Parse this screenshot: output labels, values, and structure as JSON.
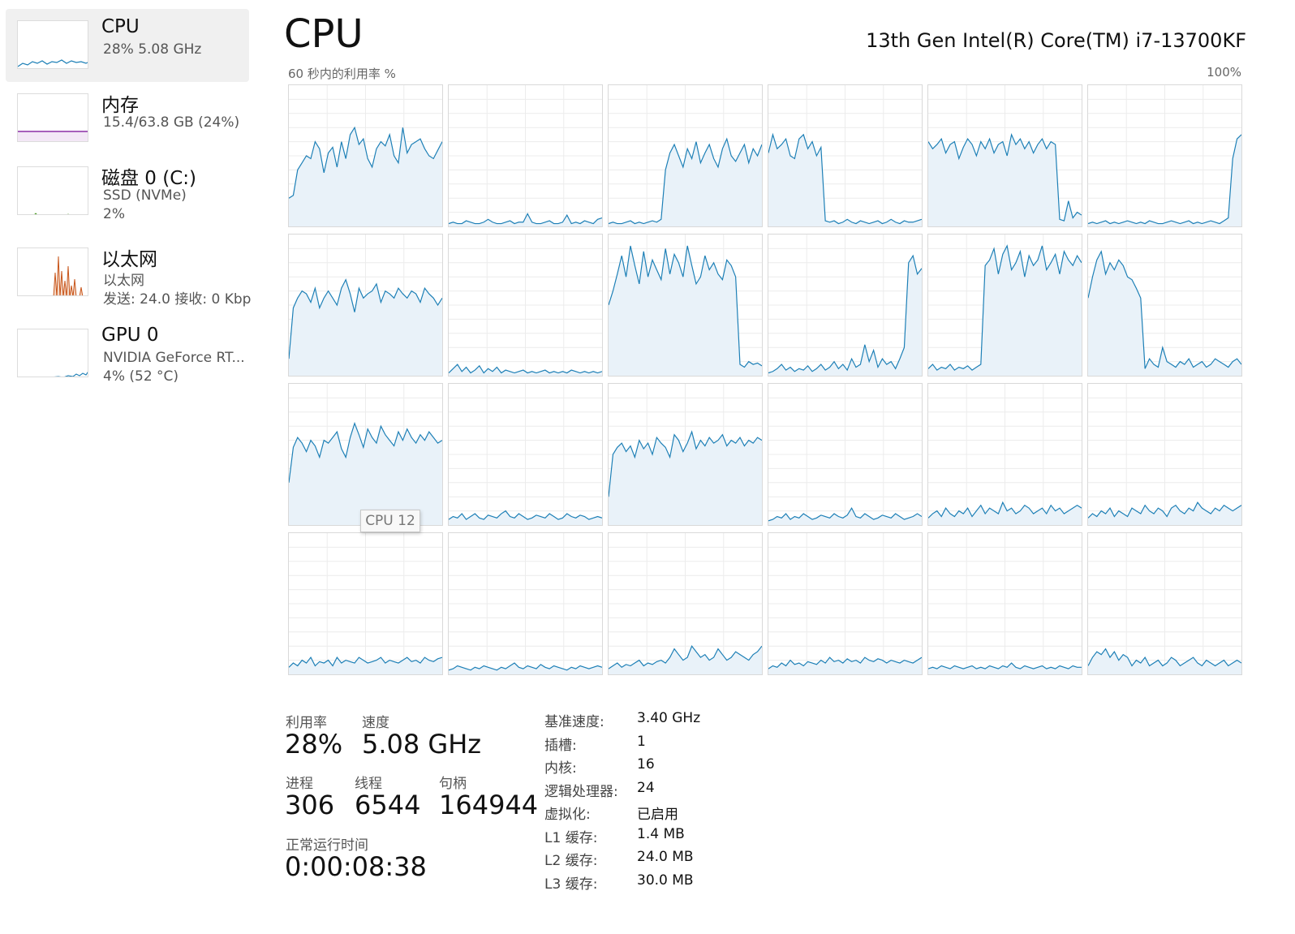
{
  "sidebar": {
    "items": [
      {
        "title": "CPU",
        "sub1": "28%  5.08 GHz",
        "sub2": "",
        "sub3": ""
      },
      {
        "title": "内存",
        "sub1": "15.4/63.8 GB (24%)",
        "sub2": "",
        "sub3": ""
      },
      {
        "title": "磁盘 0 (C:)",
        "sub1": "SSD (NVMe)",
        "sub2": "2%",
        "sub3": ""
      },
      {
        "title": "以太网",
        "sub1": "以太网",
        "sub2": "发送: 24.0  接收: 0 Kbp",
        "sub3": ""
      },
      {
        "title": "GPU 0",
        "sub1": "NVIDIA GeForce RT...",
        "sub2": "4% (52 °C)",
        "sub3": ""
      }
    ]
  },
  "header": {
    "title": "CPU",
    "model": "13th Gen Intel(R) Core(TM) i7-13700KF",
    "util_caption": "60 秒内的利用率 %",
    "util_max": "100%"
  },
  "tooltip": "CPU 12",
  "colors": {
    "line": "#1c7fb6",
    "fill": "#e9f2f9",
    "grid": "#ececec",
    "memory": "#8b2fa5",
    "ethernet": "#c8561b"
  },
  "chart_data": {
    "type": "line",
    "ylim": [
      0,
      100
    ],
    "series": [
      {
        "values": [
          20,
          22,
          40,
          45,
          50,
          48,
          60,
          55,
          38,
          52,
          56,
          42,
          60,
          48,
          65,
          70,
          58,
          62,
          48,
          42,
          55,
          60,
          57,
          65,
          50,
          45,
          70,
          52,
          58,
          60,
          62,
          55,
          50,
          48,
          54,
          60
        ]
      },
      {
        "values": [
          2,
          3,
          2,
          2,
          4,
          3,
          2,
          2,
          3,
          5,
          3,
          2,
          2,
          3,
          4,
          2,
          3,
          3,
          9,
          3,
          2,
          2,
          3,
          4,
          2,
          2,
          3,
          8,
          2,
          3,
          2,
          4,
          3,
          2,
          5,
          6
        ]
      },
      {
        "values": [
          2,
          3,
          2,
          2,
          3,
          4,
          2,
          3,
          2,
          3,
          4,
          3,
          5,
          40,
          52,
          58,
          50,
          42,
          55,
          48,
          60,
          45,
          52,
          58,
          48,
          42,
          55,
          62,
          50,
          46,
          52,
          58,
          45,
          55,
          50,
          58
        ]
      },
      {
        "values": [
          52,
          65,
          55,
          58,
          62,
          50,
          48,
          62,
          65,
          55,
          60,
          50,
          56,
          4,
          3,
          4,
          2,
          3,
          5,
          3,
          2,
          4,
          3,
          2,
          3,
          4,
          2,
          3,
          5,
          3,
          2,
          4,
          3,
          3,
          4,
          5
        ]
      },
      {
        "values": [
          60,
          55,
          58,
          62,
          52,
          58,
          60,
          48,
          56,
          62,
          58,
          50,
          60,
          55,
          62,
          52,
          58,
          60,
          50,
          65,
          58,
          62,
          55,
          60,
          52,
          58,
          62,
          55,
          60,
          58,
          5,
          4,
          18,
          6,
          10,
          8
        ]
      },
      {
        "values": [
          2,
          3,
          2,
          3,
          4,
          2,
          3,
          2,
          3,
          4,
          3,
          2,
          3,
          2,
          4,
          3,
          2,
          2,
          3,
          4,
          3,
          2,
          3,
          4,
          2,
          3,
          2,
          3,
          4,
          3,
          2,
          4,
          6,
          48,
          62,
          65
        ]
      },
      {
        "values": [
          12,
          48,
          55,
          60,
          58,
          52,
          62,
          48,
          55,
          60,
          55,
          50,
          62,
          68,
          58,
          45,
          62,
          55,
          58,
          60,
          65,
          52,
          60,
          58,
          55,
          62,
          58,
          55,
          60,
          58,
          52,
          62,
          58,
          55,
          50,
          55
        ]
      },
      {
        "values": [
          2,
          5,
          8,
          3,
          6,
          2,
          4,
          7,
          2,
          5,
          3,
          6,
          2,
          4,
          3,
          2,
          3,
          4,
          2,
          3,
          2,
          3,
          4,
          2,
          3,
          2,
          3,
          2,
          4,
          3,
          2,
          3,
          2,
          3,
          2,
          3
        ]
      },
      {
        "values": [
          50,
          60,
          72,
          85,
          70,
          92,
          78,
          65,
          88,
          70,
          82,
          75,
          68,
          90,
          72,
          86,
          80,
          70,
          92,
          78,
          65,
          70,
          85,
          75,
          80,
          72,
          68,
          82,
          78,
          70,
          8,
          6,
          10,
          8,
          9,
          7
        ]
      },
      {
        "values": [
          2,
          3,
          5,
          8,
          4,
          6,
          3,
          5,
          4,
          7,
          3,
          5,
          8,
          4,
          6,
          10,
          5,
          8,
          4,
          12,
          6,
          8,
          22,
          10,
          18,
          6,
          12,
          8,
          10,
          5,
          12,
          20,
          80,
          85,
          72,
          76
        ]
      },
      {
        "values": [
          5,
          8,
          4,
          6,
          5,
          8,
          4,
          6,
          5,
          7,
          4,
          6,
          8,
          78,
          82,
          90,
          72,
          86,
          92,
          75,
          80,
          88,
          70,
          85,
          78,
          82,
          92,
          75,
          80,
          86,
          72,
          88,
          82,
          78,
          85,
          80
        ]
      },
      {
        "values": [
          55,
          70,
          82,
          88,
          72,
          80,
          75,
          82,
          78,
          70,
          68,
          62,
          55,
          5,
          12,
          8,
          6,
          20,
          10,
          8,
          6,
          10,
          8,
          12,
          6,
          8,
          10,
          6,
          8,
          12,
          10,
          8,
          6,
          10,
          12,
          8
        ]
      },
      {
        "values": [
          30,
          55,
          62,
          58,
          52,
          60,
          56,
          48,
          60,
          58,
          62,
          66,
          54,
          48,
          62,
          72,
          64,
          55,
          68,
          62,
          58,
          70,
          64,
          60,
          56,
          66,
          60,
          68,
          62,
          58,
          64,
          60,
          66,
          62,
          58,
          60
        ]
      },
      {
        "values": [
          4,
          6,
          5,
          8,
          4,
          6,
          8,
          5,
          4,
          7,
          6,
          5,
          8,
          10,
          6,
          5,
          8,
          6,
          4,
          5,
          7,
          6,
          5,
          8,
          6,
          4,
          5,
          8,
          6,
          5,
          7,
          6,
          4,
          5,
          6,
          5
        ]
      },
      {
        "values": [
          20,
          50,
          55,
          58,
          52,
          56,
          48,
          60,
          54,
          58,
          50,
          62,
          58,
          55,
          48,
          64,
          60,
          52,
          58,
          66,
          54,
          60,
          56,
          62,
          58,
          60,
          64,
          56,
          60,
          58,
          62,
          56,
          60,
          58,
          62,
          60
        ]
      },
      {
        "values": [
          3,
          4,
          6,
          5,
          8,
          4,
          6,
          5,
          8,
          6,
          4,
          5,
          7,
          6,
          5,
          8,
          6,
          5,
          7,
          12,
          6,
          5,
          8,
          6,
          4,
          5,
          7,
          6,
          5,
          8,
          6,
          4,
          5,
          6,
          8,
          6
        ]
      },
      {
        "values": [
          5,
          8,
          10,
          6,
          12,
          8,
          6,
          10,
          8,
          12,
          6,
          10,
          14,
          8,
          12,
          10,
          8,
          16,
          10,
          12,
          8,
          10,
          14,
          12,
          8,
          10,
          12,
          8,
          14,
          10,
          12,
          8,
          10,
          12,
          14,
          12
        ]
      },
      {
        "values": [
          5,
          8,
          6,
          10,
          8,
          12,
          6,
          10,
          8,
          6,
          12,
          10,
          8,
          14,
          10,
          8,
          12,
          10,
          6,
          12,
          14,
          10,
          8,
          12,
          10,
          16,
          12,
          10,
          8,
          12,
          10,
          14,
          12,
          10,
          12,
          14
        ]
      },
      {
        "values": [
          5,
          8,
          6,
          10,
          8,
          12,
          6,
          9,
          8,
          10,
          6,
          12,
          8,
          10,
          9,
          8,
          12,
          10,
          8,
          9,
          10,
          12,
          8,
          10,
          9,
          8,
          10,
          12,
          9,
          10,
          8,
          12,
          10,
          9,
          11,
          12
        ]
      },
      {
        "values": [
          3,
          4,
          6,
          5,
          4,
          3,
          5,
          4,
          6,
          5,
          4,
          3,
          5,
          4,
          6,
          8,
          5,
          4,
          6,
          5,
          4,
          7,
          5,
          4,
          6,
          5,
          4,
          3,
          5,
          4,
          6,
          5,
          4,
          5,
          6,
          5
        ]
      },
      {
        "values": [
          4,
          6,
          8,
          5,
          7,
          6,
          8,
          10,
          6,
          8,
          7,
          9,
          10,
          8,
          12,
          18,
          14,
          10,
          12,
          20,
          16,
          12,
          14,
          10,
          12,
          18,
          14,
          10,
          12,
          16,
          14,
          12,
          10,
          14,
          16,
          20
        ]
      },
      {
        "values": [
          4,
          6,
          5,
          8,
          6,
          10,
          7,
          8,
          6,
          9,
          8,
          7,
          10,
          8,
          12,
          9,
          10,
          8,
          11,
          9,
          10,
          8,
          12,
          10,
          9,
          11,
          10,
          8,
          10,
          9,
          8,
          10,
          9,
          8,
          10,
          12
        ]
      },
      {
        "values": [
          4,
          5,
          4,
          6,
          5,
          4,
          6,
          5,
          4,
          5,
          6,
          4,
          5,
          4,
          6,
          5,
          4,
          6,
          5,
          8,
          5,
          4,
          6,
          5,
          4,
          5,
          6,
          4,
          5,
          4,
          6,
          5,
          4,
          6,
          5,
          5
        ]
      },
      {
        "values": [
          6,
          12,
          16,
          14,
          18,
          12,
          16,
          10,
          14,
          12,
          6,
          10,
          8,
          12,
          6,
          8,
          10,
          6,
          8,
          12,
          10,
          6,
          8,
          10,
          12,
          8,
          6,
          10,
          8,
          6,
          8,
          10,
          6,
          8,
          10,
          8
        ]
      }
    ]
  },
  "stats": {
    "util_label": "利用率",
    "util_value": "28%",
    "speed_label": "速度",
    "speed_value": "5.08 GHz",
    "proc_label": "进程",
    "proc_value": "306",
    "thread_label": "线程",
    "thread_value": "6544",
    "handle_label": "句柄",
    "handle_value": "164944",
    "uptime_label": "正常运行时间",
    "uptime_value": "0:00:08:38"
  },
  "specs": [
    {
      "label": "基准速度:",
      "value": "3.40 GHz"
    },
    {
      "label": "插槽:",
      "value": "1"
    },
    {
      "label": "内核:",
      "value": "16"
    },
    {
      "label": "逻辑处理器:",
      "value": "24"
    },
    {
      "label": "虚拟化:",
      "value": "已启用"
    },
    {
      "label": "L1 缓存:",
      "value": "1.4 MB"
    },
    {
      "label": "L2 缓存:",
      "value": "24.0 MB"
    },
    {
      "label": "L3 缓存:",
      "value": "30.0 MB"
    }
  ]
}
